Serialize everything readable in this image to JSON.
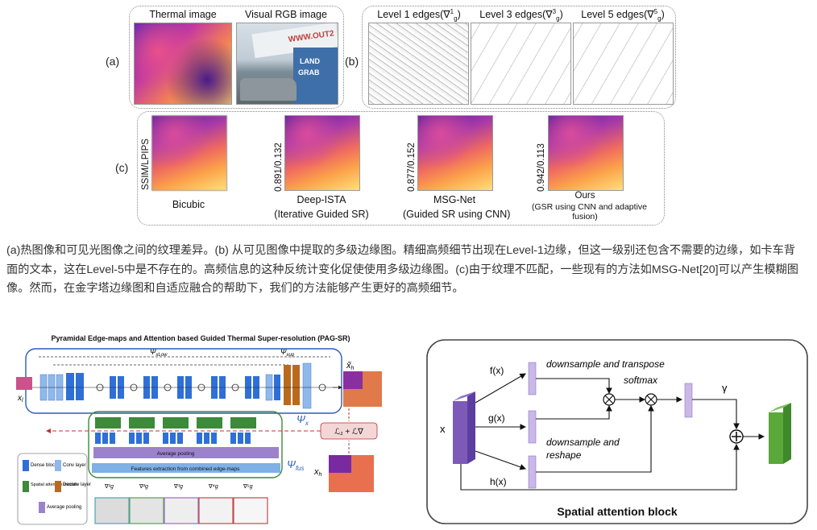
{
  "panel_a": {
    "label": "(a)",
    "thermal_caption": "Thermal image",
    "rgb_caption": "Visual RGB image",
    "rgb_sign_text": "WWW.OUT2",
    "rgb_sign_text2": "LAND",
    "rgb_sign_text3": "GRAB"
  },
  "panel_b": {
    "label": "(b)",
    "edge1_caption": "Level 1 edges(",
    "edge3_caption": "Level 3 edges(",
    "edge5_caption": "Level 5 edges(",
    "nabla": "∇",
    "g": "g",
    "sup1": "1",
    "sup3": "3",
    "sup5": "5",
    "close": ")"
  },
  "panel_c": {
    "label": "(c)",
    "metric_label": "SSIM/LPIPS",
    "bicubic": "Bicubic",
    "deep_ista_score": "0.891/0.132",
    "deep_ista": "Deep-ISTA",
    "deep_ista_sub": "(Iterative Guided SR)",
    "msg_score": "0.877/0.152",
    "msg": "MSG-Net",
    "msg_sub": "(Guided SR using CNN)",
    "ours_score": "0.942/0.113",
    "ours": "Ours",
    "ours_sub1": "(GSR using CNN and adaptive",
    "ours_sub2": "fusion)"
  },
  "caption_text": "(a)热图像和可见光图像之间的纹理差异。(b) 从可见图像中提取的多级边缘图。精细高频细节出现在Level-1边缘，但这一级别还包含不需要的边缘，如卡车背面的文本，这在Level-5中是不存在的。高频信息的这种反统计变化促使使用多级边缘图。(c)由于纹理不匹配，一些现有的方法如MSG-Net[20]可以产生模糊图像。然而，在金字塔边缘图和自适应融合的帮助下，我们的方法能够产生更好的高频细节。",
  "pag_sr": {
    "title": "Pyramidal Edge-maps and Attention based Guided Thermal Super-resolution (PAG-SR)",
    "psi_x": "Ψ",
    "psi_x_sub": "x",
    "psi_fus": "Ψ",
    "psi_fus_sub": "fus",
    "psi_top_left": "Ψ",
    "psi_top_left_sub": "xLow",
    "psi_top_right": "Ψ",
    "psi_top_right_sub": "xup",
    "x_l": "x",
    "x_l_sub": "l",
    "x_h_tilde": "x̃",
    "x_h_tilde_sub": "h",
    "x_h": "x",
    "x_h_sub": "h",
    "loss": "ℒ₁ + ℒ∇",
    "avg_pool_label": "Average pooling",
    "feat_label": "Features extraction from combined edge-maps",
    "legend": {
      "dense": "Dense block",
      "conv": "Conv layer",
      "spatial": "Spatial attention module",
      "deconv": "Deconv layer",
      "avgpool": "Average pooling"
    },
    "edge_labels": [
      "∇¹g",
      "∇²g",
      "∇³g",
      "∇⁴g",
      "∇⁵g"
    ]
  },
  "spatial_attention": {
    "title": "Spatial attention block",
    "fx": "f(x)",
    "gx": "g(x)",
    "hx": "h(x)",
    "x": "x",
    "down_transpose": "downsample and transpose",
    "softmax": "softmax",
    "down_reshape1": "downsample and",
    "down_reshape2": "reshape",
    "gamma": "γ"
  },
  "colors": {
    "dense_block": "#2f6fd8",
    "conv_layer": "#8fb8ec",
    "spatial_attention": "#3c8a3a",
    "deconv": "#b86b1f",
    "avg_pool": "#9c82cc",
    "purple_block": "#7e5ab8",
    "green_block": "#5aa83a",
    "light_purple": "#c9b8e8"
  }
}
